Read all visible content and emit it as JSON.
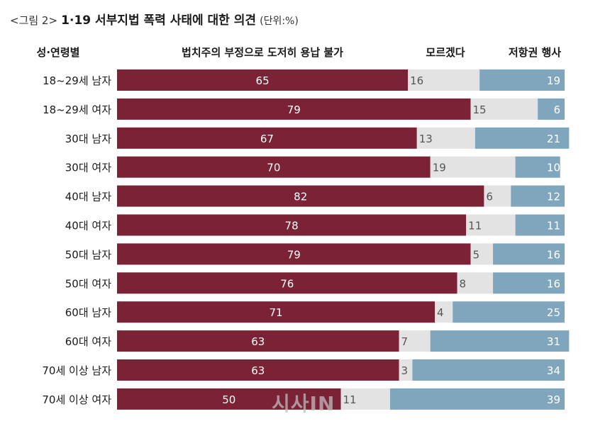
{
  "title": {
    "prefix": "<그림 2>",
    "main": "1·19 서부지법 폭력 사태에 대한 의견",
    "unit": "(단위:%)"
  },
  "watermark": "시사IN",
  "colors": {
    "series1": "#7b2237",
    "series2": "#e3e3e3",
    "series3": "#7fa6bd",
    "label_dark": "#555555",
    "label_light": "#ffffff"
  },
  "chart_data": {
    "type": "bar",
    "orientation": "horizontal",
    "stacked": true,
    "title": "1·19 서부지법 폭력 사태에 대한 의견",
    "unit": "(단위:%)",
    "category_header": "성·연령별",
    "categories": [
      "18~29세 남자",
      "18~29세 여자",
      "30대 남자",
      "30대 여자",
      "40대 남자",
      "40대 여자",
      "50대 남자",
      "50대 여자",
      "60대 남자",
      "60대 여자",
      "70세 이상 남자",
      "70세 이상 여자"
    ],
    "series": [
      {
        "name": "법치주의 부정으로 도저히 용납 불가",
        "values": [
          65,
          79,
          67,
          70,
          82,
          78,
          79,
          76,
          71,
          63,
          63,
          50
        ]
      },
      {
        "name": "모르겠다",
        "values": [
          16,
          15,
          13,
          19,
          6,
          11,
          5,
          8,
          4,
          7,
          3,
          11
        ]
      },
      {
        "name": "저항권 행사",
        "values": [
          19,
          6,
          21,
          10,
          12,
          11,
          16,
          16,
          25,
          31,
          34,
          39
        ]
      }
    ],
    "xlim": [
      0,
      100
    ],
    "legend": "top"
  }
}
